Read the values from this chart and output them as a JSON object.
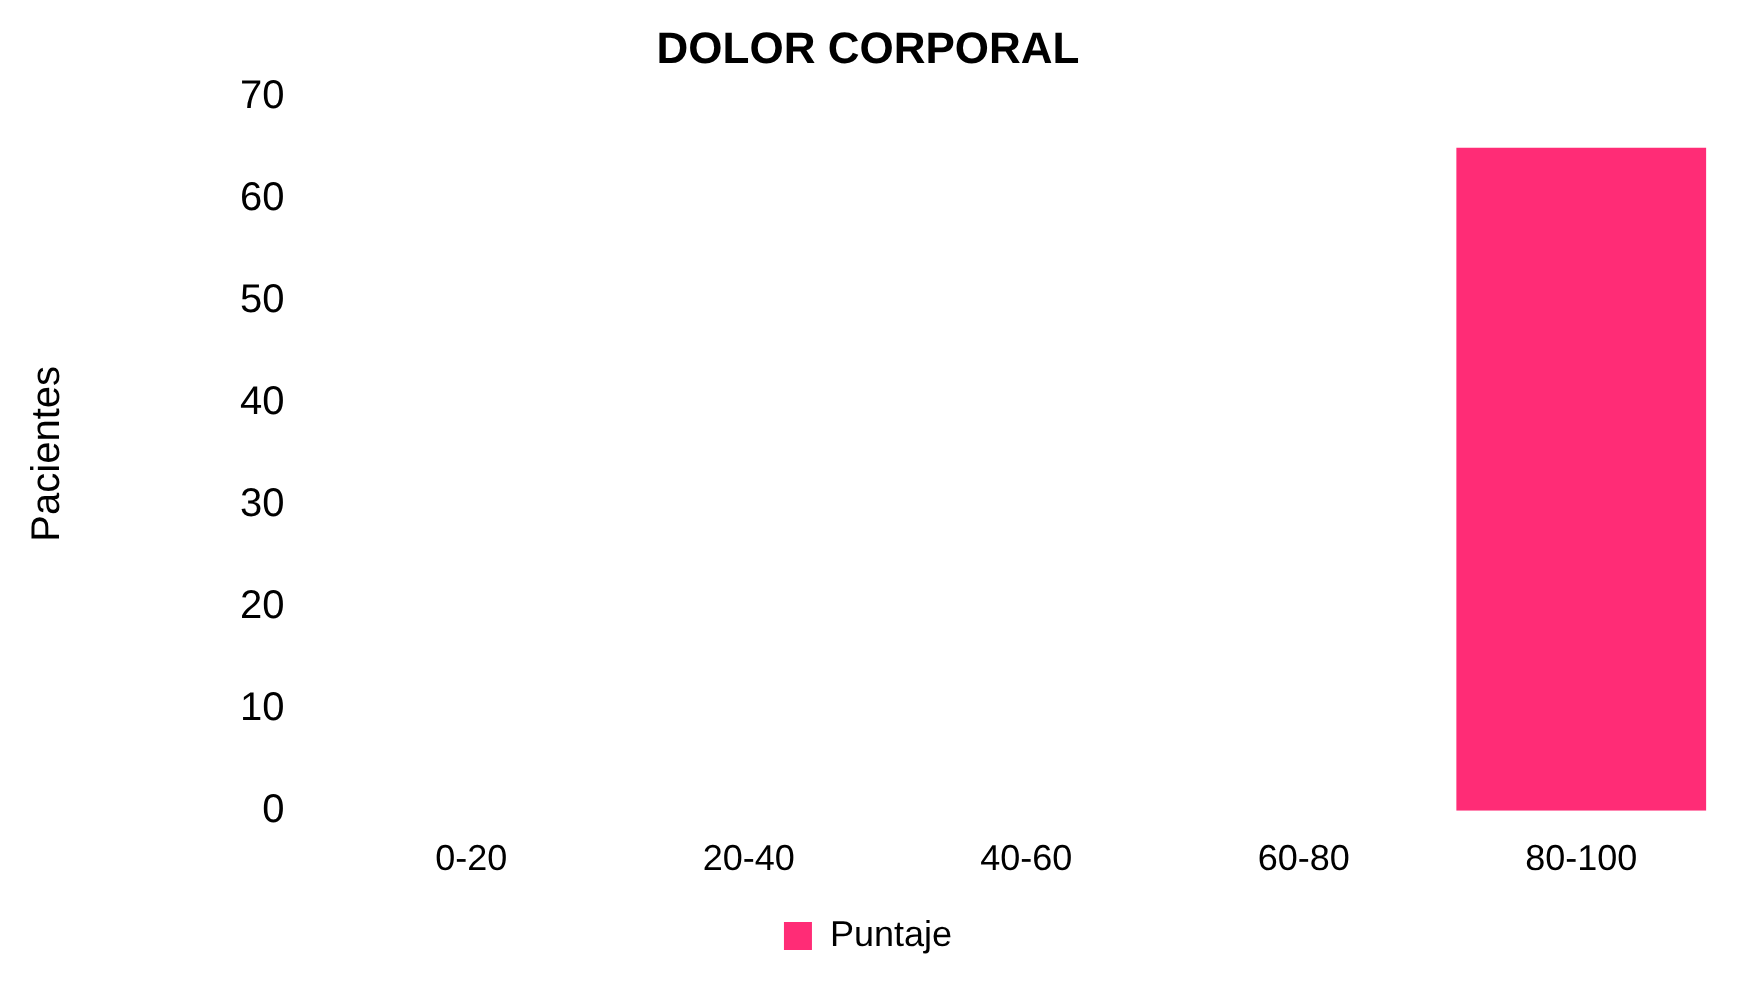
{
  "chart_data": {
    "type": "bar",
    "title": "DOLOR CORPORAL",
    "ylabel": "Pacientes",
    "categories": [
      "0-20",
      "20-40",
      "40-60",
      "60-80",
      "80-100"
    ],
    "series": [
      {
        "name": "Puntaje",
        "color": "#ff2c76",
        "values": [
          0,
          0,
          0,
          0,
          65
        ]
      }
    ],
    "ylim": [
      0,
      70
    ],
    "yticks": [
      0,
      10,
      20,
      30,
      40,
      50,
      60,
      70
    ],
    "grid": false,
    "legend": "bottom"
  }
}
